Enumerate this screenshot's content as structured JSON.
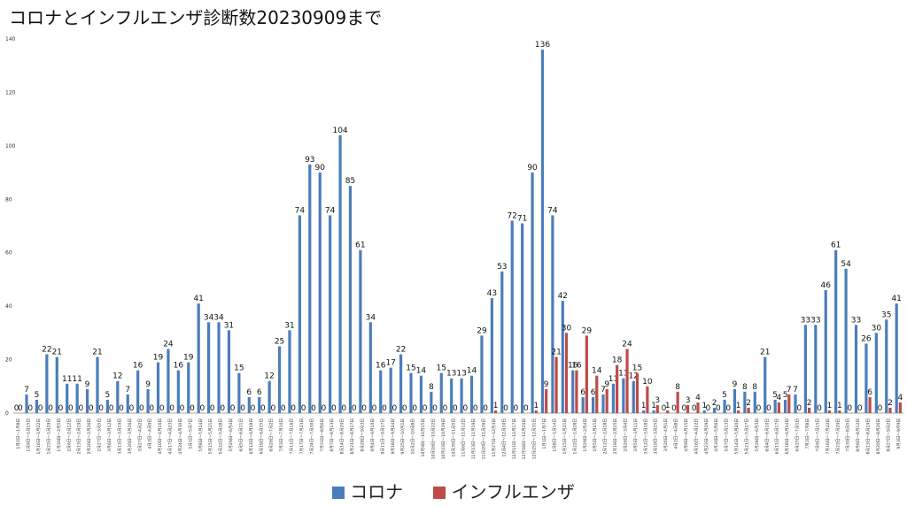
{
  "chart_data": {
    "type": "bar",
    "title": "コロナとインフルエンザ診断数20230909まで",
    "ylim": [
      0,
      140
    ],
    "yticks": [
      0,
      20,
      40,
      60,
      80,
      100,
      120,
      140
    ],
    "grid": false,
    "legend_position": "bottom",
    "categories": [
      "1月2日～1月8日",
      "1月9日～1月15日",
      "1月16日～1月22日",
      "1月23日～1月29日",
      "1月30日～2月5日",
      "2月6日～2月12日",
      "2月13日～2月19日",
      "2月20日～2月26日",
      "2月27日～3月5日",
      "3月6日～3月12日",
      "3月13日～3月19日",
      "3月20日～3月26日",
      "3月27日～4月2日",
      "4月3日～4月9日",
      "4月10日～4月16日",
      "4月17日～4月23日",
      "4月24日～4月30日",
      "5月1日～5月7日",
      "5月8日～5月14日",
      "5月15日～5月21日",
      "5月22日～5月28日",
      "5月29日～6月4日",
      "6月5日～6月11日",
      "6月12日～6月18日",
      "6月19日～6月25日",
      "6月26日～7月2日",
      "7月3日～7月10日",
      "7月11日～7月16日",
      "7月17日～7月23日",
      "7月24日～7月30日",
      "7月31日～8月6日",
      "8月7日～8月13日",
      "8月14日～8月20日",
      "8月21日～8月27日",
      "8月28日～9月3日",
      "9月4日～9月10日",
      "9月11日～9月17日",
      "9月18日～9月24日",
      "9月25日～10月1日",
      "10月2日～10月8日",
      "10月9日～10月15日",
      "10月16日～10月22日",
      "10月23日～10月29日",
      "10月30日～11月5日",
      "11月6日～11月12日",
      "11月13日～11月19日",
      "11月20日～11月26日",
      "11月27日～12月3日",
      "12月4日～12月10日",
      "12月11日～12月17日",
      "12月18日～12月24日",
      "12月25日～12月31日",
      "1月1日～1月7日",
      "1月8日～1月14日",
      "1月15日～1月21日",
      "1月22日～1月28日",
      "1月29日～2月4日",
      "2月5日～2月11日",
      "2月12日～2月18日",
      "2月19日～2月25日",
      "2月26日～3月4日",
      "3月5日～3月11日",
      "3月12日～3月18日",
      "3月19日～3月25日",
      "3月26日～4月1日",
      "4月2日～4月8日",
      "4月9日～4月15日",
      "4月16日～4月22日",
      "4月23日～4月29日",
      "4月30日～5月6日",
      "5月7日～5月13日",
      "5月14日～5月20日",
      "5月21日～5月27日",
      "5月28日～6月3日",
      "6月4日～6月10日",
      "6月11日～6月17日",
      "6月18日～6月24日",
      "6月25日～7月1日",
      "7月2日～7月8日",
      "7月9日～7月15日",
      "7月16日～7月22日",
      "7月23日～7月29日",
      "7月30日～8月5日",
      "8月6日～8月12日",
      "8月13日～8月19日",
      "8月20日～8月26日",
      "8月27日～9月2日",
      "9月3日～9月9日"
    ],
    "series": [
      {
        "name": "コロナ",
        "color": "#4A7EBB",
        "values": [
          0,
          7,
          5,
          22,
          21,
          11,
          11,
          9,
          21,
          5,
          12,
          7,
          16,
          9,
          19,
          24,
          16,
          19,
          41,
          34,
          34,
          31,
          15,
          6,
          6,
          12,
          25,
          31,
          74,
          93,
          90,
          74,
          104,
          85,
          61,
          34,
          16,
          17,
          22,
          15,
          14,
          8,
          15,
          13,
          13,
          14,
          29,
          43,
          53,
          72,
          71,
          90,
          136,
          74,
          42,
          16,
          6,
          6,
          7,
          11,
          13,
          12,
          1,
          1,
          0,
          0,
          0,
          0,
          1,
          2,
          5,
          9,
          8,
          8,
          21,
          5,
          5,
          7,
          33,
          33,
          46,
          61,
          54,
          33,
          26,
          30,
          35,
          41
        ]
      },
      {
        "name": "インフルエンザ",
        "color": "#BE4B48",
        "values": [
          0,
          0,
          0,
          0,
          0,
          0,
          0,
          0,
          0,
          0,
          0,
          0,
          0,
          0,
          0,
          0,
          0,
          0,
          0,
          0,
          0,
          0,
          0,
          0,
          0,
          0,
          0,
          0,
          0,
          0,
          0,
          0,
          0,
          0,
          0,
          0,
          0,
          0,
          0,
          0,
          0,
          0,
          0,
          0,
          0,
          0,
          0,
          1,
          0,
          0,
          0,
          1,
          9,
          21,
          30,
          16,
          29,
          14,
          9,
          18,
          24,
          15,
          10,
          3,
          1,
          8,
          3,
          4,
          0,
          0,
          0,
          1,
          2,
          0,
          0,
          4,
          7,
          0,
          2,
          0,
          1,
          1,
          0,
          0,
          6,
          0,
          2,
          4
        ]
      }
    ]
  }
}
